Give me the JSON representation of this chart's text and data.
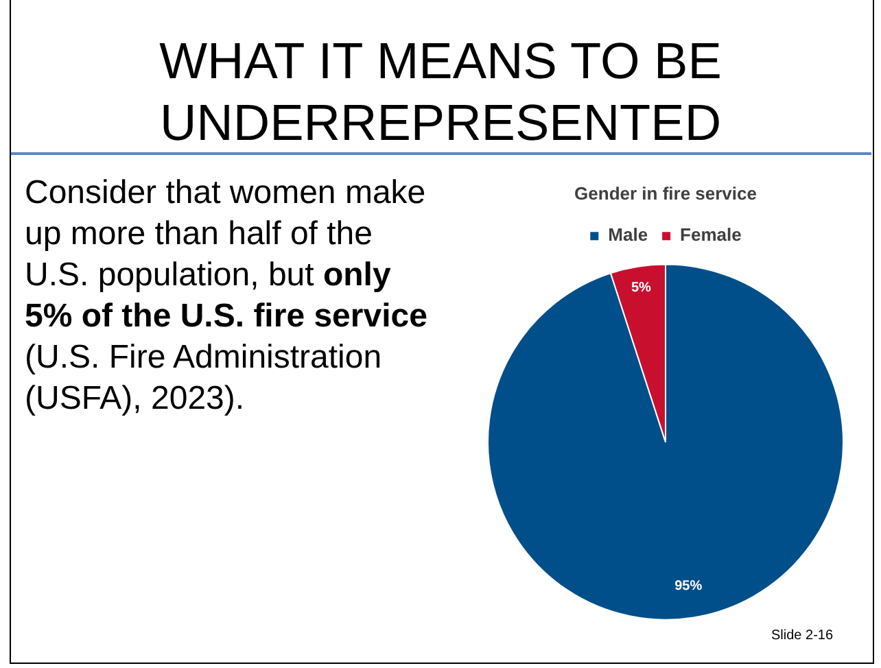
{
  "chart_data": {
    "type": "pie",
    "title": "Gender in fire service",
    "categories": [
      "Male",
      "Female"
    ],
    "values": [
      95,
      5
    ],
    "colors": [
      "#004f8a",
      "#c8102e"
    ],
    "value_labels": [
      "95%",
      "5%"
    ],
    "legend": "top",
    "annotations": [
      "WHAT IT MEANS TO BE UNDERREPRESENTED",
      "Consider that women make up more than half of the U.S. population, but ",
      "only 5% of the U.S. fire service",
      " (U.S. Fire Administration (USFA), 2023).",
      "Slide 2-16"
    ]
  }
}
